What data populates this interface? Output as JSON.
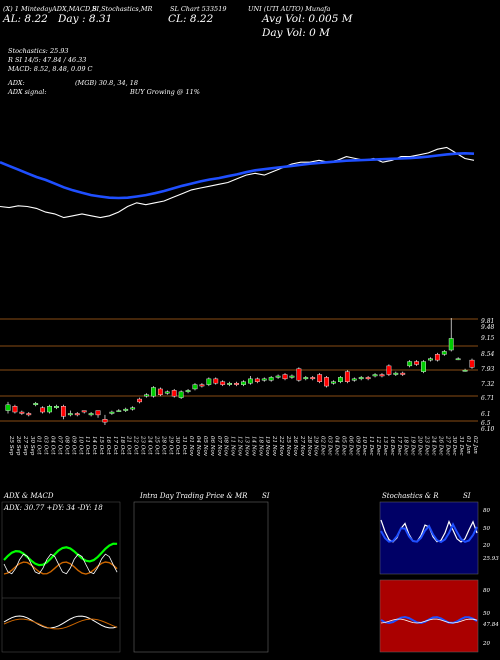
{
  "header": {
    "row1_a": "(X) 1 MintedayADX,MACD,B",
    "row1_b": "SI,Stochastics,MR",
    "row1_c": "SL Chart 533519",
    "row1_d": "UNI (UTI AUTO) Munafa",
    "row2_a": "AL: 8.22",
    "row2_b": "Day : 8.31",
    "row2_c": "CL: 8.22",
    "row2_d": "Avg Vol: 0.005 M",
    "row3_d": "Day Vol: 0   M",
    "stoch": "Stochastics: 25.93",
    "rsi": "R        SI 14/5: 47.84  / 46.33",
    "macd": "MACD: 8.52,  8.48,  0.09 C",
    "adx": "ADX:",
    "adx_mid": "(MGB) 30.8,  34,  18",
    "adx_signal": "ADX  signal:",
    "buy": "BUY Growing @ 11%"
  },
  "price_labels": [
    "9.81",
    "9.48",
    "9.15",
    "8.54",
    "7.93",
    "7.32",
    "6.71",
    "6.1",
    "6.5",
    "6.10"
  ],
  "dates": [
    "25 Sep",
    "26 Sep",
    "27 Sep",
    "30 Sep",
    "01 Oct",
    "03 Oct",
    "04 Oct",
    "07 Oct",
    "08 Oct",
    "09 Oct",
    "10 Oct",
    "11 Oct",
    "14 Oct",
    "15 Oct",
    "16 Oct",
    "17 Oct",
    "18 Oct",
    "21 Oct",
    "22 Oct",
    "23 Oct",
    "24 Oct",
    "25 Oct",
    "28 Oct",
    "29 Oct",
    "30 Oct",
    "31 Oct",
    "01 Nov",
    "04 Nov",
    "05 Nov",
    "06 Nov",
    "07 Nov",
    "08 Nov",
    "11 Nov",
    "12 Nov",
    "13 Nov",
    "14 Nov",
    "18 Nov",
    "19 Nov",
    "21 Nov",
    "22 Nov",
    "25 Nov",
    "26 Nov",
    "27 Nov",
    "28 Nov",
    "29 Nov",
    "02 Dec",
    "03 Dec",
    "04 Dec",
    "05 Dec",
    "06 Dec",
    "09 Dec",
    "10 Dec",
    "11 Dec",
    "12 Dec",
    "13 Dec",
    "16 Dec",
    "17 Dec",
    "18 Dec",
    "19 Dec",
    "20 Dec",
    "23 Dec",
    "24 Dec",
    "26 Dec",
    "27 Dec",
    "30 Dec",
    "31 Dec",
    "01 Jan",
    "02 Jan"
  ],
  "panels": {
    "adx_title": "ADX  & MACD",
    "adx_values": "ADX: 30.77  +DY: 34   -DY: 18",
    "intraday_title": "Intra  Day Trading Price  & MR",
    "intraday_si": "SI",
    "stoch_title": "Stochastics & R",
    "stoch_si": "SI",
    "stoch_scale": [
      "80",
      "50",
      "20",
      "25.93"
    ],
    "rsi_scale": [
      "80",
      "50",
      "47.84",
      "20"
    ]
  },
  "colors": {
    "up": "#00cc00",
    "down": "#ff0000",
    "ma": "#1f4fff",
    "price_line": "#ffffff",
    "grid": "#b5651d",
    "rsi_bg": "#aa0000",
    "stoch_bg": "#000066"
  },
  "chart_data": {
    "type": "candlestick",
    "title": "UNI (UTI AUTO) Munafa",
    "ylim": [
      6.1,
      9.81
    ],
    "candles": [
      {
        "o": 6.6,
        "c": 6.8,
        "h": 6.9,
        "l": 6.5
      },
      {
        "o": 6.75,
        "c": 6.55,
        "h": 6.8,
        "l": 6.5
      },
      {
        "o": 6.55,
        "c": 6.5,
        "h": 6.6,
        "l": 6.45
      },
      {
        "o": 6.5,
        "c": 6.45,
        "h": 6.55,
        "l": 6.4
      },
      {
        "o": 6.8,
        "c": 6.85,
        "h": 6.9,
        "l": 6.75
      },
      {
        "o": 6.7,
        "c": 6.55,
        "h": 6.75,
        "l": 6.5
      },
      {
        "o": 6.55,
        "c": 6.75,
        "h": 6.8,
        "l": 6.5
      },
      {
        "o": 6.7,
        "c": 6.75,
        "h": 6.8,
        "l": 6.65
      },
      {
        "o": 6.75,
        "c": 6.4,
        "h": 6.8,
        "l": 6.3
      },
      {
        "o": 6.45,
        "c": 6.5,
        "h": 6.6,
        "l": 6.4
      },
      {
        "o": 6.5,
        "c": 6.45,
        "h": 6.55,
        "l": 6.4
      },
      {
        "o": 6.6,
        "c": 6.55,
        "h": 6.6,
        "l": 6.5
      },
      {
        "o": 6.45,
        "c": 6.5,
        "h": 6.55,
        "l": 6.4
      },
      {
        "o": 6.6,
        "c": 6.45,
        "h": 6.6,
        "l": 6.35
      },
      {
        "o": 6.3,
        "c": 6.2,
        "h": 6.45,
        "l": 6.1
      },
      {
        "o": 6.5,
        "c": 6.55,
        "h": 6.6,
        "l": 6.45
      },
      {
        "o": 6.6,
        "c": 6.6,
        "h": 6.65,
        "l": 6.55
      },
      {
        "o": 6.6,
        "c": 6.65,
        "h": 6.7,
        "l": 6.55
      },
      {
        "o": 6.65,
        "c": 6.7,
        "h": 6.75,
        "l": 6.6
      },
      {
        "o": 7.0,
        "c": 6.9,
        "h": 7.05,
        "l": 6.85
      },
      {
        "o": 7.1,
        "c": 7.15,
        "h": 7.2,
        "l": 7.05
      },
      {
        "o": 7.1,
        "c": 7.4,
        "h": 7.45,
        "l": 7.05
      },
      {
        "o": 7.35,
        "c": 7.15,
        "h": 7.4,
        "l": 7.1
      },
      {
        "o": 7.2,
        "c": 7.25,
        "h": 7.3,
        "l": 7.15
      },
      {
        "o": 7.3,
        "c": 7.1,
        "h": 7.35,
        "l": 7.05
      },
      {
        "o": 7.05,
        "c": 7.25,
        "h": 7.3,
        "l": 7.0
      },
      {
        "o": 7.25,
        "c": 7.3,
        "h": 7.35,
        "l": 7.2
      },
      {
        "o": 7.35,
        "c": 7.5,
        "h": 7.55,
        "l": 7.3
      },
      {
        "o": 7.5,
        "c": 7.45,
        "h": 7.55,
        "l": 7.4
      },
      {
        "o": 7.5,
        "c": 7.7,
        "h": 7.75,
        "l": 7.45
      },
      {
        "o": 7.7,
        "c": 7.55,
        "h": 7.75,
        "l": 7.5
      },
      {
        "o": 7.6,
        "c": 7.5,
        "h": 7.65,
        "l": 7.45
      },
      {
        "o": 7.5,
        "c": 7.55,
        "h": 7.6,
        "l": 7.45
      },
      {
        "o": 7.55,
        "c": 7.5,
        "h": 7.6,
        "l": 7.45
      },
      {
        "o": 7.5,
        "c": 7.6,
        "h": 7.65,
        "l": 7.45
      },
      {
        "o": 7.55,
        "c": 7.7,
        "h": 7.8,
        "l": 7.5
      },
      {
        "o": 7.7,
        "c": 7.6,
        "h": 7.75,
        "l": 7.55
      },
      {
        "o": 7.65,
        "c": 7.7,
        "h": 7.75,
        "l": 7.6
      },
      {
        "o": 7.65,
        "c": 7.75,
        "h": 7.8,
        "l": 7.6
      },
      {
        "o": 7.75,
        "c": 7.8,
        "h": 7.85,
        "l": 7.7
      },
      {
        "o": 7.85,
        "c": 7.7,
        "h": 7.9,
        "l": 7.65
      },
      {
        "o": 7.75,
        "c": 7.8,
        "h": 7.85,
        "l": 7.7
      },
      {
        "o": 8.05,
        "c": 7.65,
        "h": 8.1,
        "l": 7.6
      },
      {
        "o": 7.7,
        "c": 7.75,
        "h": 7.8,
        "l": 7.65
      },
      {
        "o": 7.75,
        "c": 7.7,
        "h": 7.8,
        "l": 7.65
      },
      {
        "o": 7.85,
        "c": 7.6,
        "h": 7.9,
        "l": 7.55
      },
      {
        "o": 7.75,
        "c": 7.45,
        "h": 7.8,
        "l": 7.4
      },
      {
        "o": 7.55,
        "c": 7.6,
        "h": 7.65,
        "l": 7.5
      },
      {
        "o": 7.6,
        "c": 7.75,
        "h": 7.8,
        "l": 7.55
      },
      {
        "o": 7.95,
        "c": 7.6,
        "h": 8.0,
        "l": 7.55
      },
      {
        "o": 7.65,
        "c": 7.7,
        "h": 7.75,
        "l": 7.6
      },
      {
        "o": 7.7,
        "c": 7.75,
        "h": 7.8,
        "l": 7.65
      },
      {
        "o": 7.75,
        "c": 7.7,
        "h": 7.8,
        "l": 7.65
      },
      {
        "o": 7.8,
        "c": 7.85,
        "h": 7.9,
        "l": 7.75
      },
      {
        "o": 7.85,
        "c": 7.8,
        "h": 7.9,
        "l": 7.75
      },
      {
        "o": 8.15,
        "c": 7.85,
        "h": 8.2,
        "l": 7.8
      },
      {
        "o": 7.85,
        "c": 7.9,
        "h": 7.95,
        "l": 7.8
      },
      {
        "o": 7.9,
        "c": 7.85,
        "h": 7.95,
        "l": 7.8
      },
      {
        "o": 8.15,
        "c": 8.3,
        "h": 8.35,
        "l": 8.1
      },
      {
        "o": 8.3,
        "c": 8.2,
        "h": 8.35,
        "l": 8.15
      },
      {
        "o": 7.95,
        "c": 8.3,
        "h": 8.35,
        "l": 7.9
      },
      {
        "o": 8.35,
        "c": 8.4,
        "h": 8.45,
        "l": 8.3
      },
      {
        "o": 8.55,
        "c": 8.35,
        "h": 8.6,
        "l": 8.3
      },
      {
        "o": 8.55,
        "c": 8.65,
        "h": 8.7,
        "l": 8.5
      },
      {
        "o": 8.7,
        "c": 9.1,
        "h": 9.81,
        "l": 8.65
      },
      {
        "o": 8.4,
        "c": 8.4,
        "h": 8.45,
        "l": 8.35
      },
      {
        "o": 8.0,
        "c": 8.0,
        "h": 8.05,
        "l": 7.95
      },
      {
        "o": 8.35,
        "c": 8.1,
        "h": 8.4,
        "l": 8.05
      }
    ],
    "price_line": [
      6.0,
      5.97,
      6.02,
      6.0,
      5.95,
      5.85,
      5.8,
      5.7,
      5.75,
      5.8,
      5.75,
      5.7,
      5.75,
      5.85,
      6.0,
      6.1,
      6.05,
      6.1,
      6.15,
      6.25,
      6.35,
      6.45,
      6.5,
      6.55,
      6.6,
      6.65,
      6.75,
      6.85,
      6.9,
      6.85,
      6.95,
      7.05,
      7.15,
      7.2,
      7.2,
      7.25,
      7.2,
      7.25,
      7.35,
      7.3,
      7.25,
      7.3,
      7.2,
      7.25,
      7.35,
      7.35,
      7.4,
      7.45,
      7.55,
      7.6,
      7.45,
      7.3,
      7.25
    ],
    "ma_line": [
      7.2,
      7.1,
      7.0,
      6.9,
      6.8,
      6.72,
      6.62,
      6.52,
      6.44,
      6.37,
      6.31,
      6.27,
      6.24,
      6.23,
      6.24,
      6.27,
      6.31,
      6.36,
      6.42,
      6.49,
      6.56,
      6.62,
      6.68,
      6.73,
      6.77,
      6.82,
      6.87,
      6.93,
      6.98,
      7.01,
      7.04,
      7.07,
      7.1,
      7.13,
      7.16,
      7.18,
      7.2,
      7.22,
      7.24,
      7.25,
      7.26,
      7.27,
      7.28,
      7.29,
      7.3,
      7.31,
      7.33,
      7.35,
      7.38,
      7.41,
      7.43,
      7.44,
      7.43
    ]
  }
}
